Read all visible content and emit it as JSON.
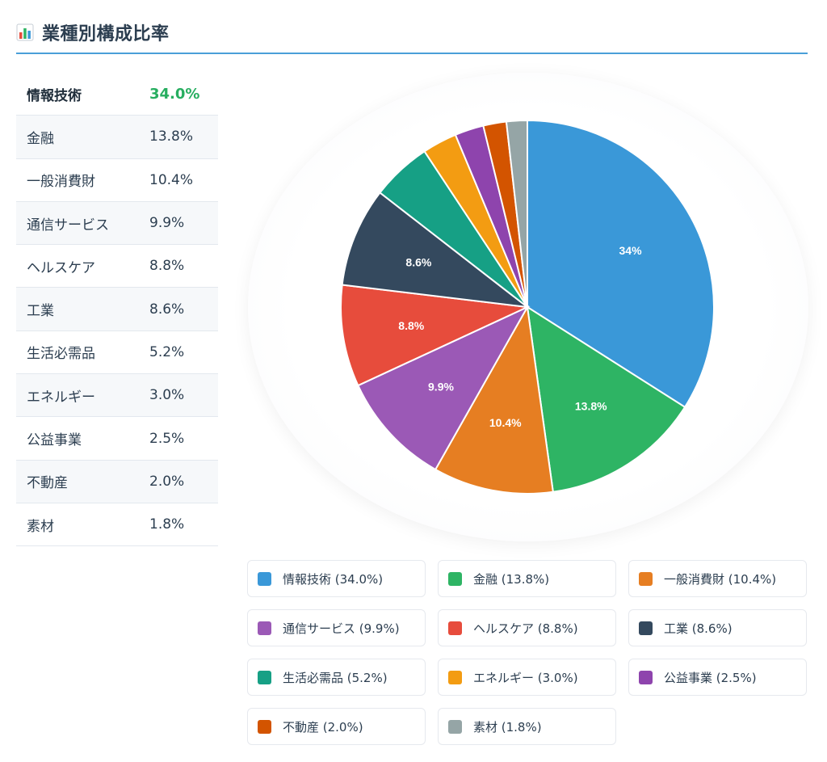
{
  "header": {
    "title": "業種別構成比率",
    "icon": "bar-chart-icon"
  },
  "table": {
    "rows": [
      {
        "name": "情報技術",
        "value": "34.0%"
      },
      {
        "name": "金融",
        "value": "13.8%"
      },
      {
        "name": "一般消費財",
        "value": "10.4%"
      },
      {
        "name": "通信サービス",
        "value": "9.9%"
      },
      {
        "name": "ヘルスケア",
        "value": "8.8%"
      },
      {
        "name": "工業",
        "value": "8.6%"
      },
      {
        "name": "生活必需品",
        "value": "5.2%"
      },
      {
        "name": "エネルギー",
        "value": "3.0%"
      },
      {
        "name": "公益事業",
        "value": "2.5%"
      },
      {
        "name": "不動産",
        "value": "2.0%"
      },
      {
        "name": "素材",
        "value": "1.8%"
      }
    ]
  },
  "chart_data": {
    "type": "pie",
    "title": "業種別構成比率",
    "categories": [
      "情報技術",
      "金融",
      "一般消費財",
      "通信サービス",
      "ヘルスケア",
      "工業",
      "生活必需品",
      "エネルギー",
      "公益事業",
      "不動産",
      "素材"
    ],
    "values": [
      34.0,
      13.8,
      10.4,
      9.9,
      8.8,
      8.6,
      5.2,
      3.0,
      2.5,
      2.0,
      1.8
    ],
    "slice_labels": [
      "34%",
      "13.8%",
      "10.4%",
      "9.9%",
      "8.8%",
      "8.6%",
      "",
      "",
      "",
      "",
      ""
    ],
    "colors": [
      "#3a98d8",
      "#2eb464",
      "#e67e22",
      "#9b59b6",
      "#e74c3c",
      "#34495e",
      "#16a085",
      "#f39c12",
      "#8e44ad",
      "#d35400",
      "#95a5a6"
    ],
    "legend_placement": "bottom"
  },
  "legend": {
    "items": [
      {
        "label": "情報技術 (34.0%)"
      },
      {
        "label": "金融 (13.8%)"
      },
      {
        "label": "一般消費財 (10.4%)"
      },
      {
        "label": "通信サービス (9.9%)"
      },
      {
        "label": "ヘルスケア (8.8%)"
      },
      {
        "label": "工業 (8.6%)"
      },
      {
        "label": "生活必需品 (5.2%)"
      },
      {
        "label": "エネルギー (3.0%)"
      },
      {
        "label": "公益事業 (2.5%)"
      },
      {
        "label": "不動産 (2.0%)"
      },
      {
        "label": "素材 (1.8%)"
      }
    ]
  }
}
